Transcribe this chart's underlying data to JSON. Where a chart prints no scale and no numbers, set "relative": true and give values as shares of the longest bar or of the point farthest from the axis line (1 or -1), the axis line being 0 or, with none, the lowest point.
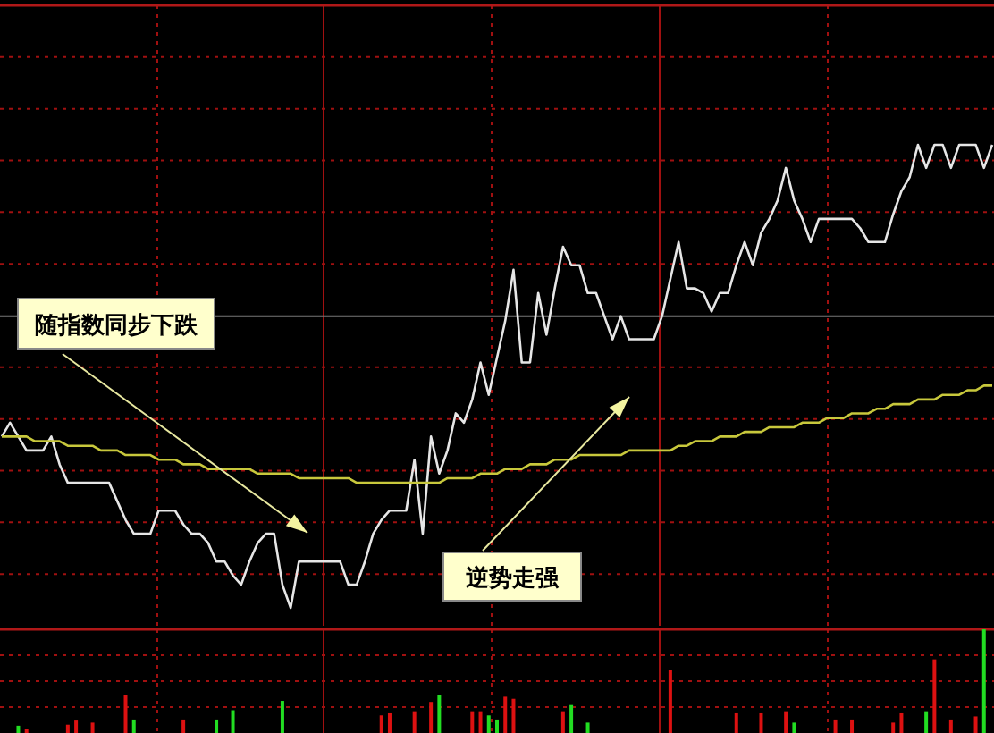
{
  "chart_data": [
    {
      "type": "line",
      "relative": true,
      "grid": true,
      "line_style": "solid",
      "ref_lines": [
        {
          "axis": "y",
          "value": 0.63,
          "color": "#777777"
        }
      ],
      "annotations": [
        "随指数同步下跌",
        "逆势走强"
      ],
      "categories": [
        null,
        null,
        null,
        null,
        null,
        null,
        null,
        null,
        null,
        null,
        null,
        null,
        null,
        null,
        null,
        null,
        null,
        null,
        null,
        null,
        null,
        null,
        null,
        null,
        null,
        null,
        null,
        null,
        null,
        null,
        null,
        null,
        null,
        null,
        null,
        null,
        null,
        null,
        null,
        null,
        null,
        null,
        null,
        null,
        null,
        null,
        null,
        null,
        null,
        null,
        null,
        null,
        null,
        null,
        null,
        null,
        null,
        null,
        null,
        null,
        null,
        null,
        null,
        null,
        null,
        null,
        null,
        null,
        null,
        null,
        null,
        null,
        null,
        null,
        null,
        null,
        null,
        null,
        null,
        null,
        null,
        null,
        null,
        null,
        null,
        null,
        null,
        null,
        null,
        null,
        null,
        null,
        null,
        null,
        null,
        null,
        null,
        null,
        null,
        null,
        null,
        null,
        null,
        null,
        null,
        null,
        null,
        null,
        null,
        null,
        null,
        null,
        null,
        null,
        null,
        null,
        null,
        null,
        null,
        null,
        null
      ],
      "series": [
        {
          "color": "#e6e6e6",
          "values": [
            0.37,
            0.4,
            0.37,
            0.34,
            0.34,
            0.34,
            0.37,
            0.31,
            0.27,
            0.27,
            0.27,
            0.27,
            0.27,
            0.27,
            0.23,
            0.19,
            0.16,
            0.16,
            0.16,
            0.21,
            0.21,
            0.21,
            0.18,
            0.16,
            0.16,
            0.14,
            0.1,
            0.1,
            0.07,
            0.05,
            0.1,
            0.14,
            0.16,
            0.16,
            0.05,
            0,
            0.1,
            0.1,
            0.1,
            0.1,
            0.1,
            0.1,
            0.05,
            0.05,
            0.1,
            0.16,
            0.19,
            0.21,
            0.21,
            0.21,
            0.32,
            0.16,
            0.37,
            0.29,
            0.34,
            0.42,
            0.4,
            0.45,
            0.53,
            0.46,
            0.54,
            0.62,
            0.73,
            0.53,
            0.53,
            0.68,
            0.59,
            0.69,
            0.78,
            0.74,
            0.74,
            0.68,
            0.68,
            0.63,
            0.58,
            0.63,
            0.58,
            0.58,
            0.58,
            0.58,
            0.63,
            0.71,
            0.79,
            0.69,
            0.69,
            0.68,
            0.64,
            0.68,
            0.68,
            0.74,
            0.79,
            0.74,
            0.81,
            0.84,
            0.88,
            0.95,
            0.88,
            0.84,
            0.79,
            0.84,
            0.84,
            0.84,
            0.84,
            0.84,
            0.82,
            0.79,
            0.79,
            0.79,
            0.85,
            0.9,
            0.93,
            1,
            0.95,
            1,
            1,
            0.95,
            1,
            1,
            1,
            0.95,
            1
          ]
        },
        {
          "color": "#c8c83c",
          "values": [
            0.37,
            0.37,
            0.37,
            0.37,
            0.36,
            0.36,
            0.36,
            0.36,
            0.35,
            0.35,
            0.35,
            0.35,
            0.34,
            0.34,
            0.34,
            0.33,
            0.33,
            0.33,
            0.33,
            0.32,
            0.32,
            0.32,
            0.31,
            0.31,
            0.31,
            0.3,
            0.3,
            0.3,
            0.3,
            0.3,
            0.3,
            0.29,
            0.29,
            0.29,
            0.29,
            0.29,
            0.28,
            0.28,
            0.28,
            0.28,
            0.28,
            0.28,
            0.28,
            0.27,
            0.27,
            0.27,
            0.27,
            0.27,
            0.27,
            0.27,
            0.27,
            0.27,
            0.27,
            0.27,
            0.28,
            0.28,
            0.28,
            0.28,
            0.29,
            0.29,
            0.29,
            0.3,
            0.3,
            0.3,
            0.31,
            0.31,
            0.31,
            0.32,
            0.32,
            0.32,
            0.33,
            0.33,
            0.33,
            0.33,
            0.33,
            0.33,
            0.34,
            0.34,
            0.34,
            0.34,
            0.34,
            0.34,
            0.35,
            0.35,
            0.36,
            0.36,
            0.36,
            0.37,
            0.37,
            0.37,
            0.38,
            0.38,
            0.38,
            0.39,
            0.39,
            0.39,
            0.39,
            0.4,
            0.4,
            0.4,
            0.41,
            0.41,
            0.41,
            0.42,
            0.42,
            0.42,
            0.43,
            0.43,
            0.44,
            0.44,
            0.44,
            0.45,
            0.45,
            0.45,
            0.46,
            0.46,
            0.46,
            0.47,
            0.47,
            0.48,
            0.48
          ]
        }
      ]
    },
    {
      "type": "bar",
      "relative": true,
      "grid": true,
      "categories": [
        null,
        null,
        null,
        null,
        null,
        null,
        null,
        null,
        null,
        null,
        null,
        null,
        null,
        null,
        null,
        null,
        null,
        null,
        null,
        null,
        null,
        null,
        null,
        null,
        null,
        null,
        null,
        null,
        null,
        null,
        null,
        null,
        null,
        null,
        null,
        null,
        null,
        null,
        null,
        null,
        null,
        null,
        null,
        null,
        null,
        null,
        null,
        null,
        null,
        null,
        null,
        null,
        null,
        null,
        null,
        null,
        null,
        null,
        null,
        null,
        null,
        null,
        null,
        null,
        null,
        null,
        null,
        null,
        null,
        null,
        null,
        null,
        null,
        null,
        null,
        null,
        null,
        null,
        null,
        null,
        null,
        null,
        null,
        null,
        null,
        null,
        null,
        null,
        null,
        null,
        null,
        null,
        null,
        null,
        null,
        null,
        null,
        null,
        null,
        null,
        null,
        null,
        null,
        null,
        null,
        null,
        null,
        null,
        null,
        null,
        null,
        null,
        null,
        null,
        null,
        null,
        null,
        null,
        null,
        null,
        null
      ],
      "values": [
        null,
        null,
        0.07,
        0.04,
        null,
        null,
        null,
        null,
        0.08,
        0.12,
        null,
        0.1,
        null,
        null,
        null,
        0.37,
        0.13,
        null,
        null,
        null,
        null,
        null,
        0.13,
        null,
        null,
        null,
        0.13,
        null,
        0.22,
        null,
        null,
        null,
        null,
        null,
        0.31,
        null,
        null,
        null,
        null,
        null,
        null,
        null,
        null,
        null,
        null,
        null,
        0.17,
        0.19,
        null,
        null,
        0.21,
        null,
        0.3,
        0.37,
        null,
        null,
        null,
        0.21,
        0.21,
        0.17,
        0.13,
        0.35,
        0.33,
        null,
        null,
        null,
        null,
        null,
        0.21,
        0.27,
        null,
        0.1,
        null,
        null,
        null,
        null,
        null,
        null,
        null,
        null,
        null,
        0.61,
        null,
        null,
        null,
        null,
        null,
        null,
        null,
        0.19,
        null,
        null,
        0.19,
        null,
        null,
        0.21,
        0.1,
        null,
        null,
        null,
        null,
        0.13,
        null,
        0.13,
        null,
        null,
        null,
        null,
        0.1,
        0.19,
        null,
        null,
        0.21,
        0.71,
        null,
        0.13,
        null,
        null,
        0.16,
        1,
        null
      ],
      "colors": [
        null,
        null,
        "#22dd22",
        "#dd1111",
        null,
        null,
        null,
        null,
        "#dd1111",
        "#dd1111",
        null,
        "#dd1111",
        null,
        null,
        null,
        "#dd1111",
        "#22dd22",
        null,
        null,
        null,
        null,
        null,
        "#dd1111",
        null,
        null,
        null,
        "#22dd22",
        null,
        "#22dd22",
        null,
        null,
        null,
        null,
        null,
        "#22dd22",
        null,
        null,
        null,
        null,
        null,
        null,
        null,
        null,
        null,
        null,
        null,
        "#dd1111",
        "#dd1111",
        null,
        null,
        "#dd1111",
        null,
        "#dd1111",
        "#22dd22",
        null,
        null,
        null,
        "#dd1111",
        "#dd1111",
        "#22dd22",
        "#22dd22",
        "#dd1111",
        "#dd1111",
        null,
        null,
        null,
        null,
        null,
        "#dd1111",
        "#22dd22",
        null,
        "#22dd22",
        null,
        null,
        null,
        null,
        null,
        null,
        null,
        null,
        null,
        "#dd1111",
        null,
        null,
        null,
        null,
        null,
        null,
        null,
        "#dd1111",
        null,
        null,
        "#dd1111",
        null,
        null,
        "#dd1111",
        "#22dd22",
        null,
        null,
        null,
        null,
        "#dd1111",
        null,
        "#dd1111",
        null,
        null,
        null,
        null,
        "#dd1111",
        "#dd1111",
        null,
        null,
        "#22dd22",
        "#dd1111",
        null,
        "#dd1111",
        null,
        null,
        "#dd1111",
        "#22dd22",
        null
      ]
    }
  ]
}
